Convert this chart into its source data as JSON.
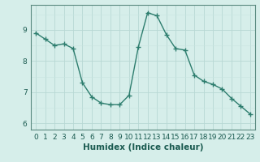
{
  "x": [
    0,
    1,
    2,
    3,
    4,
    5,
    6,
    7,
    8,
    9,
    10,
    11,
    12,
    13,
    14,
    15,
    16,
    17,
    18,
    19,
    20,
    21,
    22,
    23
  ],
  "y": [
    8.9,
    8.7,
    8.5,
    8.55,
    8.4,
    7.3,
    6.85,
    6.65,
    6.6,
    6.6,
    6.9,
    8.45,
    9.55,
    9.45,
    8.85,
    8.4,
    8.35,
    7.55,
    7.35,
    7.25,
    7.1,
    6.8,
    6.55,
    6.3
  ],
  "line_color": "#2d7d6e",
  "marker": "+",
  "marker_size": 4,
  "line_width": 1.0,
  "xlabel": "Humidex (Indice chaleur)",
  "ylim": [
    5.8,
    9.8
  ],
  "xlim": [
    -0.5,
    23.5
  ],
  "xtick_labels": [
    "0",
    "1",
    "2",
    "3",
    "4",
    "5",
    "6",
    "7",
    "8",
    "9",
    "10",
    "11",
    "12",
    "13",
    "14",
    "15",
    "16",
    "17",
    "18",
    "19",
    "20",
    "21",
    "22",
    "23"
  ],
  "ytick_values": [
    6,
    7,
    8,
    9
  ],
  "bg_color": "#d6eeea",
  "grid_color_major": "#b8d8d4",
  "grid_color_minor": "#c8e4e0",
  "xlabel_fontsize": 7.5,
  "tick_fontsize": 6.5
}
